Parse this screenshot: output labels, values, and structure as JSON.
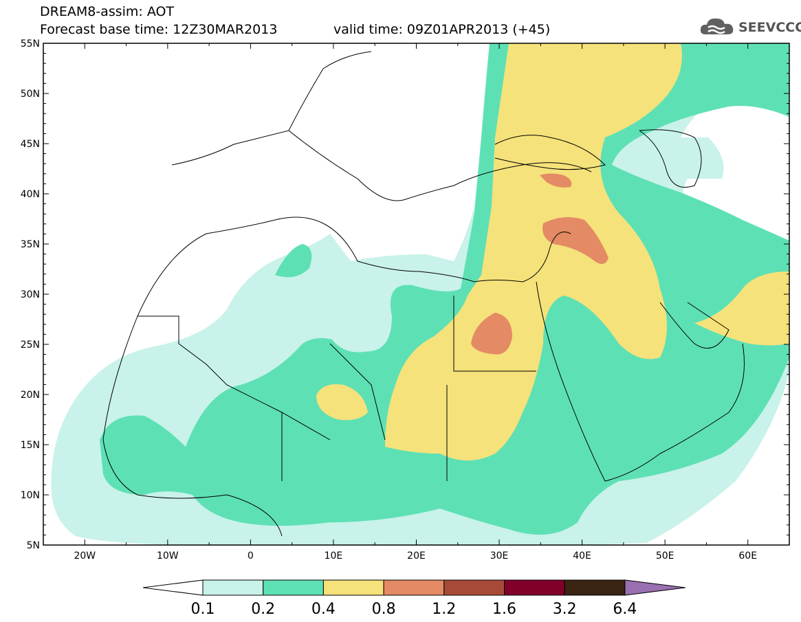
{
  "header": {
    "title_line1": "DREAM8-assim: AOT",
    "base_time": "Forecast base time: 12Z30MAR2013",
    "valid_time": "valid time: 09Z01APR2013 (+45)"
  },
  "logo": {
    "text": "SEEVCCC",
    "icon": "cloud-icon"
  },
  "map": {
    "lon_range": [
      -25,
      65
    ],
    "lat_range": [
      5,
      55
    ],
    "lat_ticks": [
      "5N",
      "10N",
      "15N",
      "20N",
      "25N",
      "30N",
      "35N",
      "40N",
      "45N",
      "50N",
      "55N"
    ],
    "lon_ticks": [
      "20W",
      "10W",
      "0",
      "10E",
      "20E",
      "30E",
      "40E",
      "50E",
      "60E"
    ],
    "field_colors": {
      "0.1": "#c8f2ea",
      "0.2": "#5ee0b5",
      "0.4": "#f5e27a",
      "0.8": "#e48a64"
    }
  },
  "colorbar": {
    "labels": [
      "0.1",
      "0.2",
      "0.4",
      "0.8",
      "1.2",
      "1.6",
      "3.2",
      "6.4"
    ],
    "colors": [
      "#c8f2ea",
      "#5ee0b5",
      "#f5e27a",
      "#e48a64",
      "#a84a38",
      "#80002a",
      "#3a2412",
      "#9a70b0"
    ],
    "under_color": "#ffffff"
  }
}
